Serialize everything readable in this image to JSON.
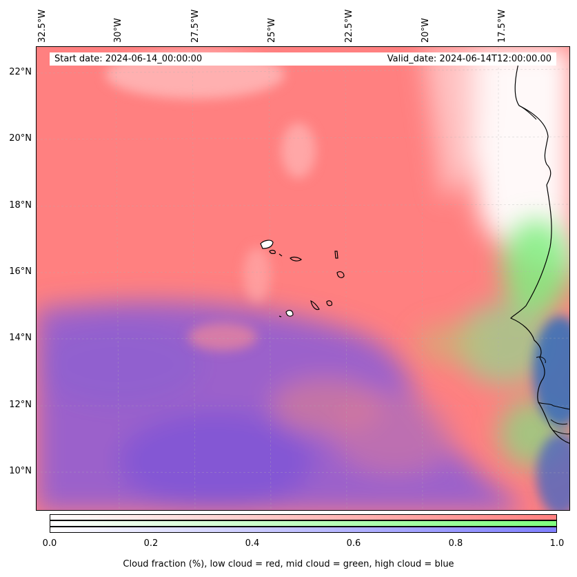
{
  "map": {
    "start_date": "Start date: 2024-06-14_00:00:00",
    "valid_date": "Valid_date: 2024-06-14T12:00:00.00",
    "lon_labels": [
      "32.5°W",
      "30°W",
      "27.5°W",
      "25°W",
      "22.5°W",
      "20°W",
      "17.5°W"
    ],
    "lat_labels": [
      "22°N",
      "20°N",
      "18°N",
      "16°N",
      "14°N",
      "12°N",
      "10°N"
    ],
    "colors": {
      "low_cloud": "#ff7f7f",
      "mid_cloud": "#7fff7f",
      "high_cloud": "#7f7fff",
      "coast": "#000000"
    }
  },
  "colorbar": {
    "ticks": [
      "0.0",
      "0.2",
      "0.4",
      "0.6",
      "0.8",
      "1.0"
    ],
    "caption": "Cloud fraction (%), low cloud = red, mid cloud = green, high cloud = blue"
  }
}
